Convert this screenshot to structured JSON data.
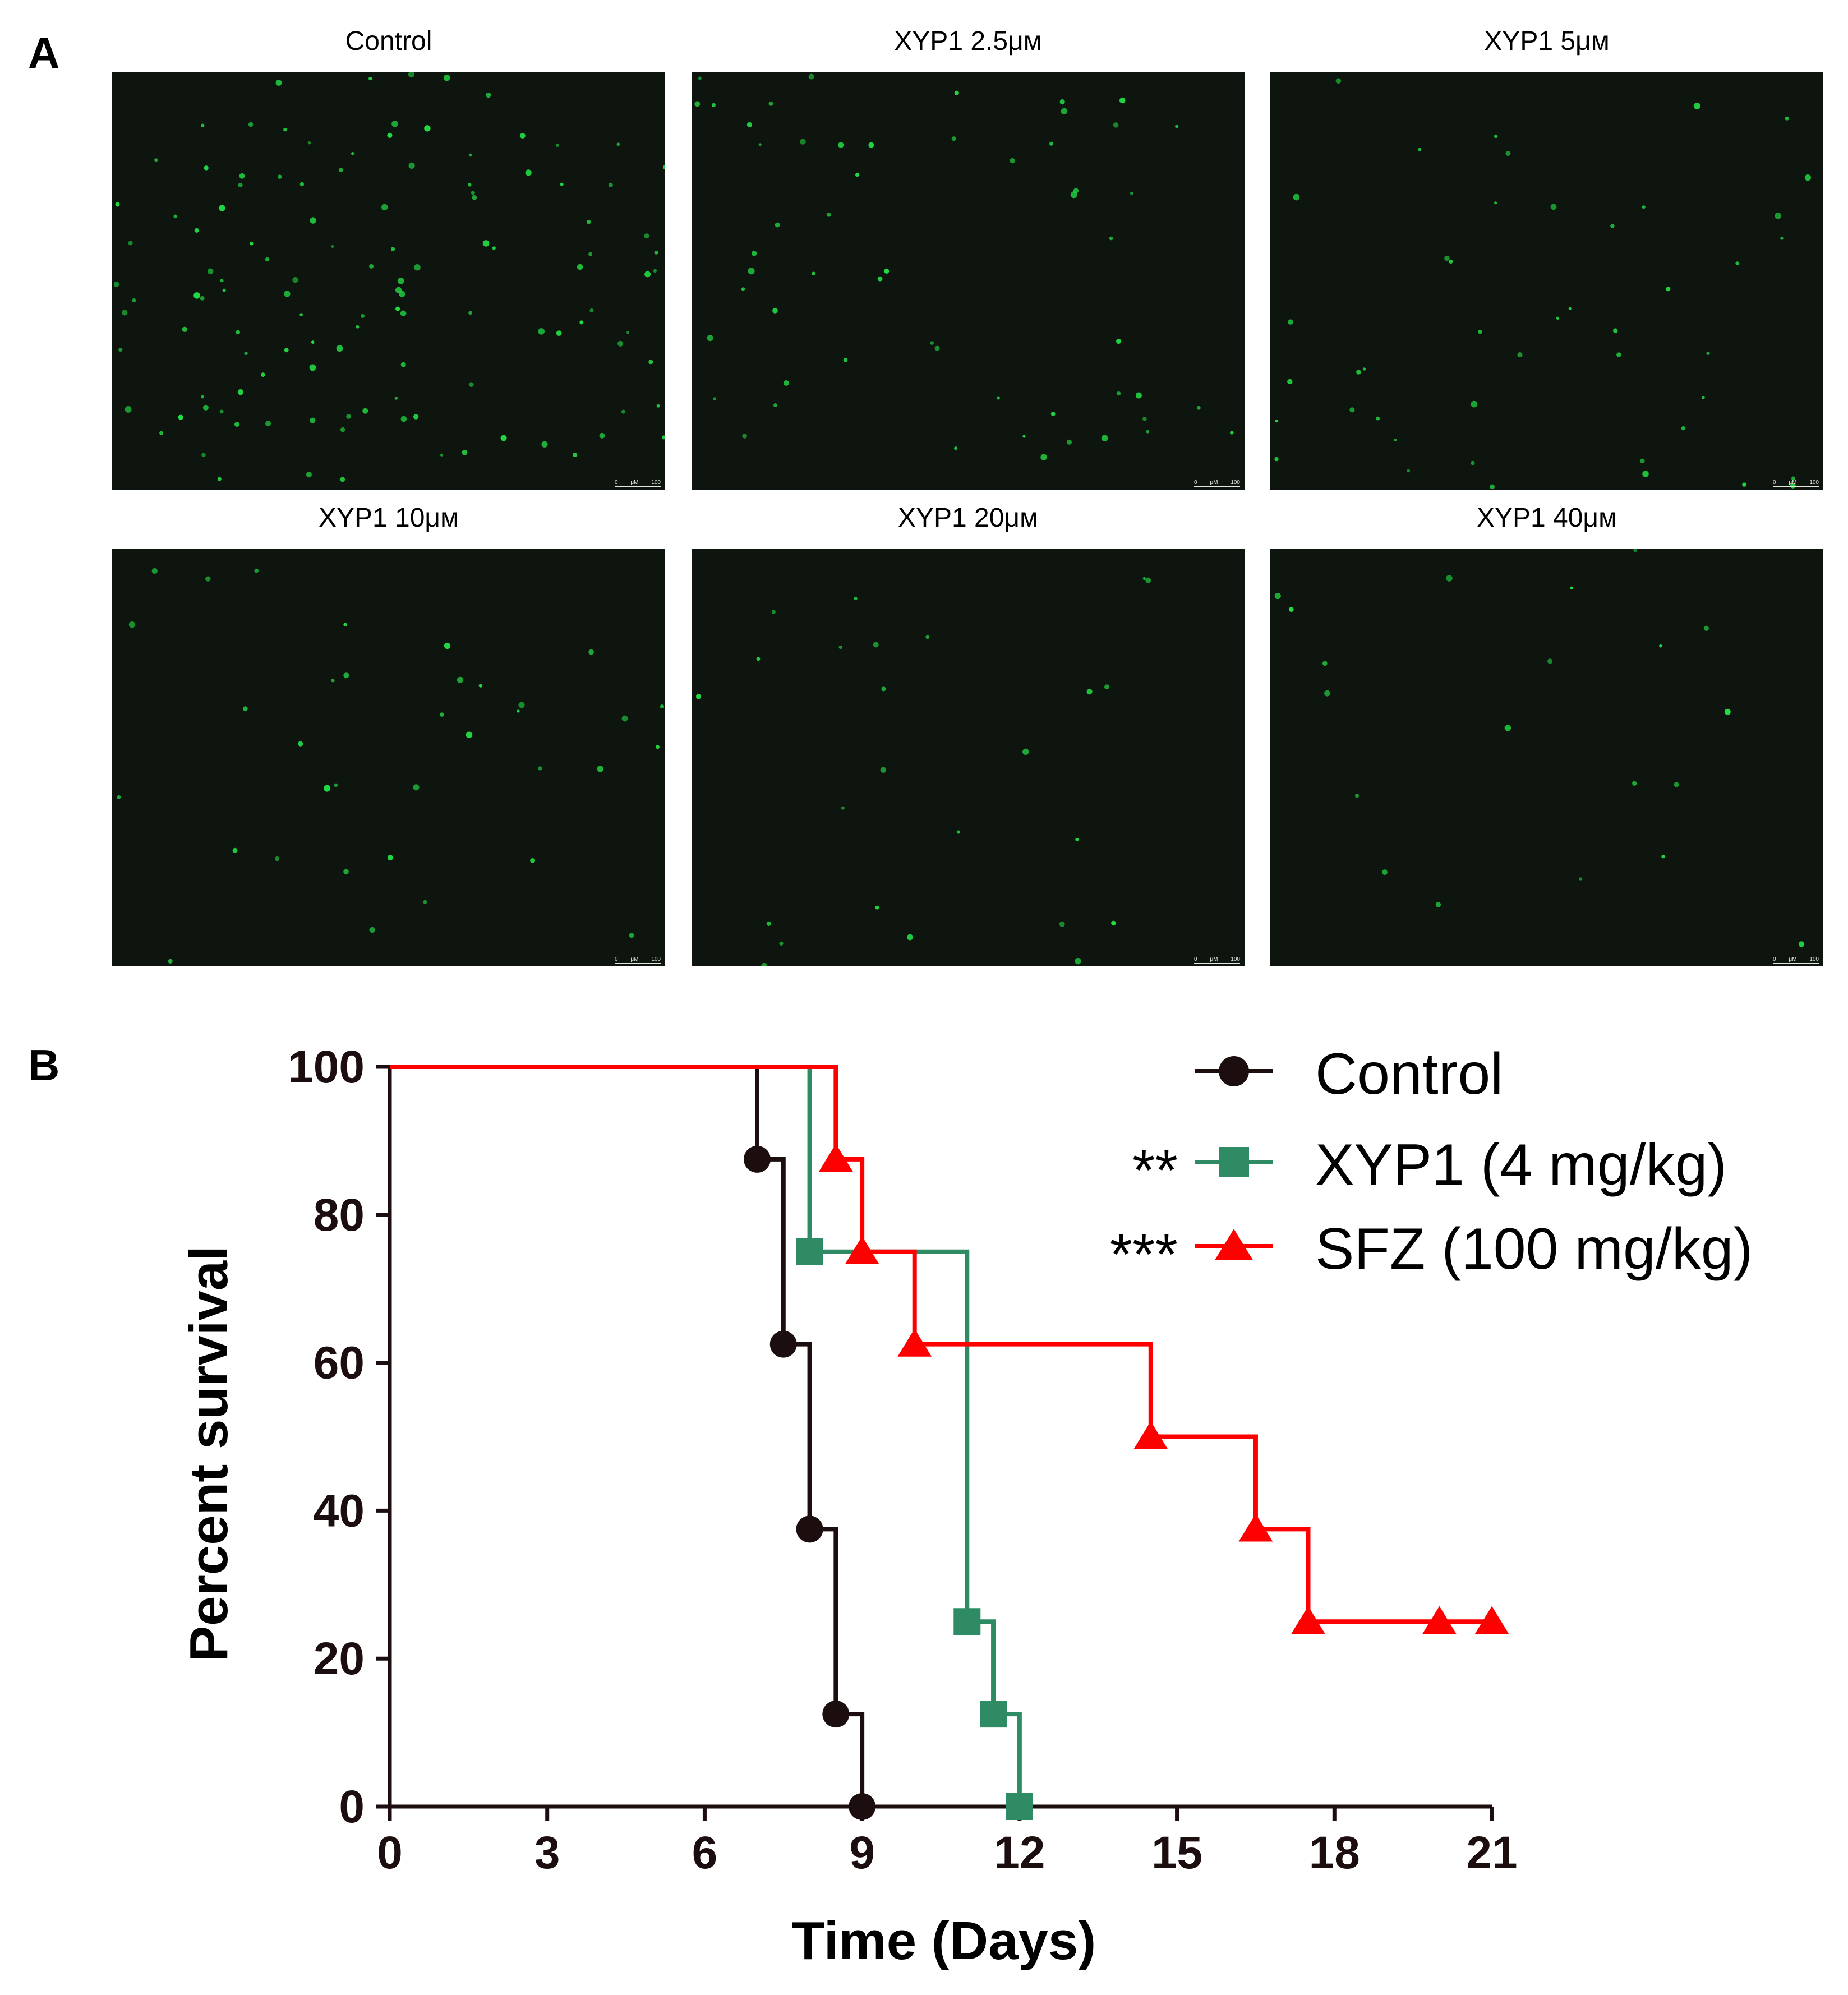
{
  "panel_a": {
    "letter": "A",
    "images": [
      {
        "title": "Control",
        "density": 120
      },
      {
        "title": "XYP1 2.5μм",
        "density": 55
      },
      {
        "title": "XYP1 5μм",
        "density": 45
      },
      {
        "title": "XYP1 10μм",
        "density": 35
      },
      {
        "title": "XYP1 20μм",
        "density": 25
      },
      {
        "title": "XYP1 40μм",
        "density": 20
      }
    ],
    "scalebar": {
      "zero": "0",
      "unit": "μM",
      "value": "100"
    },
    "spot_color": "#22dd44"
  },
  "panel_b": {
    "letter": "B"
  },
  "chart_data": {
    "type": "line",
    "subtype": "kaplan-meier step",
    "title": "",
    "xlabel": "Time (Days)",
    "ylabel": "Percent survival",
    "xlim": [
      0,
      21
    ],
    "ylim": [
      0,
      100
    ],
    "xticks": [
      0,
      3,
      6,
      9,
      12,
      15,
      18,
      21
    ],
    "yticks": [
      0,
      20,
      40,
      60,
      80,
      100
    ],
    "grid": false,
    "legend_position": "top-right",
    "series": [
      {
        "name": "Control",
        "marker": "circle",
        "color": "#1c0e0e",
        "significance": "",
        "x": [
          0,
          7,
          7.5,
          8,
          8.5,
          9
        ],
        "y": [
          100,
          87.5,
          62.5,
          37.5,
          12.5,
          0
        ]
      },
      {
        "name": "XYP1 (4 mg/kg)",
        "marker": "square",
        "color": "#2e8b63",
        "significance": "**",
        "x": [
          0,
          8,
          11,
          11.5,
          12
        ],
        "y": [
          100,
          75,
          25,
          12.5,
          0
        ]
      },
      {
        "name": "SFZ (100 mg/kg)",
        "marker": "triangle",
        "color": "#ff0000",
        "significance": "***",
        "x": [
          0,
          8.5,
          9,
          10,
          14.5,
          16.5,
          17.5,
          20,
          21
        ],
        "y": [
          100,
          87.5,
          75,
          62.5,
          50,
          37.5,
          25,
          25,
          25
        ]
      }
    ]
  }
}
